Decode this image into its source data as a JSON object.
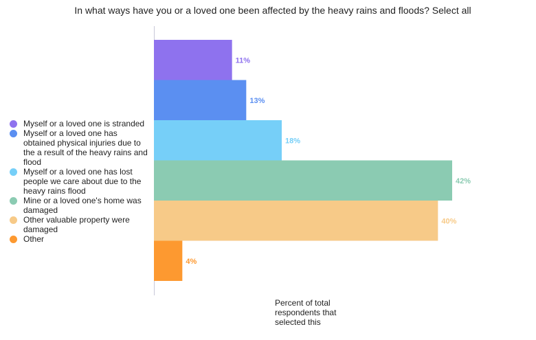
{
  "chart_data": {
    "type": "bar",
    "orientation": "horizontal",
    "title": "In what ways have you or a loved one been affected by the heavy rains and floods? Select all",
    "xlabel": "Percent of total respondents that selected this",
    "ylabel": "",
    "xlim": [
      0,
      45
    ],
    "grid": false,
    "legend_position": "left",
    "categories": [
      "Myself or a loved one is stranded",
      "Myself or a loved one has obtained physical injuries due to the a result of the heavy rains and flood",
      "Myself or a loved one has lost people we care about due to the heavy rains flood",
      "Mine or a loved one's home was damaged",
      "Other valuable property were damaged",
      "Other"
    ],
    "values": [
      11,
      13,
      18,
      42,
      40,
      4
    ],
    "data_labels": [
      "11%",
      "13%",
      "18%",
      "42%",
      "40%",
      "4%"
    ],
    "colors": [
      "#8e72ee",
      "#5b8ff1",
      "#76cff8",
      "#8bcbb2",
      "#f7ca88",
      "#fd9930"
    ],
    "label_colors": [
      "#8e72ee",
      "#5b8ff1",
      "#76cff8",
      "#8bcbb2",
      "#f7ca88",
      "#fd9930"
    ]
  }
}
